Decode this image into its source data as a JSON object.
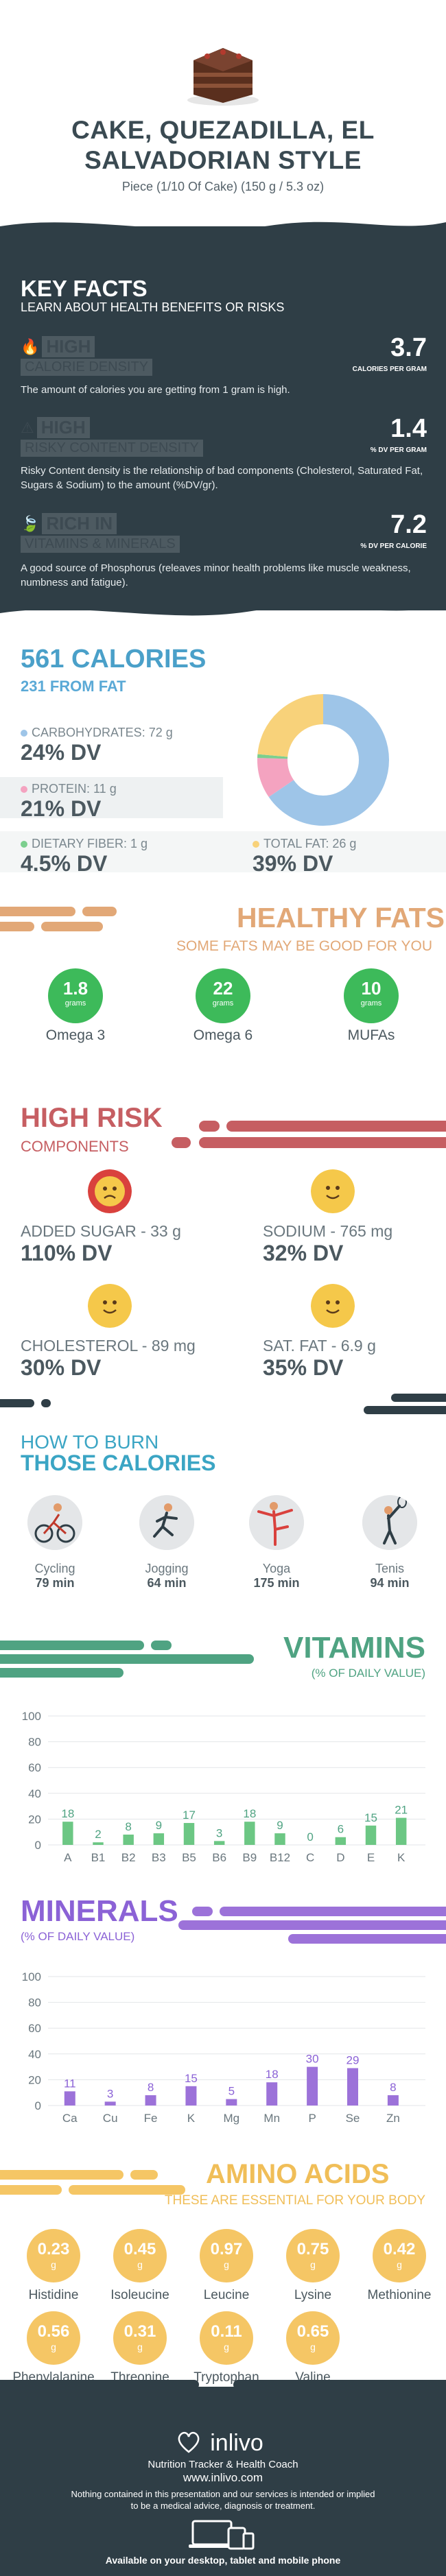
{
  "header": {
    "title_line1": "CAKE, QUEZADILLA, EL",
    "title_line2": "SALVADORIAN STYLE",
    "serving": "Piece (1/10 Of Cake) (150 g / 5.3 oz)"
  },
  "key_facts": {
    "title": "KEY FACTS",
    "subtitle": "LEARN ABOUT HEALTH BENEFITS OR RISKS",
    "items": [
      {
        "level": "HIGH",
        "label": "CALORIE DENSITY",
        "value": "3.7",
        "unit": "CALORIES PER GRAM",
        "desc": "The amount of calories you are getting from 1 gram is high."
      },
      {
        "level": "HIGH",
        "label": "RISKY CONTENT DENSITY",
        "value": "1.4",
        "unit": "% DV PER GRAM",
        "desc": "Risky Content density is the relationship of bad components (Cholesterol, Saturated Fat, Sugars & Sodium) to the amount (%DV/gr)."
      },
      {
        "level": "RICH  IN",
        "label": "VITAMINS & MINERALS",
        "value": "7.2",
        "unit": "% DV PER CALORIE",
        "desc": "A good source of Phosphorus (releaves minor health problems like muscle weakness, numbness and fatigue)."
      }
    ]
  },
  "calories": {
    "title": "561 CALORIES",
    "from_fat": "231 FROM FAT",
    "nutrients": [
      {
        "label": "CARBOHYDRATES: 72 g",
        "dv": "24% DV",
        "color": "#9ec5e8"
      },
      {
        "label": "PROTEIN: 11 g",
        "dv": "21% DV",
        "color": "#f4a3c0"
      },
      {
        "label": "DIETARY FIBER: 1 g",
        "dv": "4.5% DV",
        "color": "#7ccf8e"
      },
      {
        "label": "TOTAL FAT: 26 g",
        "dv": "39% DV",
        "color": "#f8d27a"
      }
    ],
    "donut": [
      {
        "name": "carbohydrates",
        "value": 72,
        "color": "#9ec5e8"
      },
      {
        "name": "protein",
        "value": 11,
        "color": "#f4a3c0"
      },
      {
        "name": "fiber",
        "value": 1,
        "color": "#7ccf8e"
      },
      {
        "name": "fat",
        "value": 26,
        "color": "#f8d27a"
      }
    ]
  },
  "healthy_fats": {
    "title": "HEALTHY FATS",
    "subtitle": "SOME FATS MAY BE GOOD FOR YOU",
    "unit": "grams",
    "items": [
      {
        "value": "1.8",
        "name": "Omega 3"
      },
      {
        "value": "22",
        "name": "Omega 6"
      },
      {
        "value": "10",
        "name": "MUFAs"
      }
    ]
  },
  "high_risk": {
    "title": "HIGH RISK",
    "subtitle": "COMPONENTS",
    "items": [
      {
        "label": "ADDED SUGAR - 33 g",
        "dv": "110% DV",
        "face": "sad"
      },
      {
        "label": "SODIUM - 765 mg",
        "dv": "32% DV",
        "face": "happy"
      },
      {
        "label": "CHOLESTEROL - 89 mg",
        "dv": "30% DV",
        "face": "happy"
      },
      {
        "label": "SAT. FAT - 6.9 g",
        "dv": "35% DV",
        "face": "happy"
      }
    ]
  },
  "burn": {
    "title_line1": "HOW TO BURN",
    "title_line2": "THOSE CALORIES",
    "activities": [
      {
        "name": "Cycling",
        "minutes": "79 min",
        "icon": "cycling-icon"
      },
      {
        "name": "Jogging",
        "minutes": "64 min",
        "icon": "jogging-icon"
      },
      {
        "name": "Yoga",
        "minutes": "175 min",
        "icon": "yoga-icon"
      },
      {
        "name": "Tenis",
        "minutes": "94 min",
        "icon": "tennis-icon"
      }
    ]
  },
  "vitamins": {
    "title": "VITAMINS",
    "subtitle": "(% OF DAILY VALUE)",
    "color": "#6cc784"
  },
  "minerals": {
    "title": "MINERALS",
    "subtitle": "(% OF DAILY VALUE)",
    "color": "#9c72d9"
  },
  "chart_data": [
    {
      "type": "bar",
      "title": "VITAMINS",
      "subtitle": "(% OF DAILY VALUE)",
      "categories": [
        "A",
        "B1",
        "B2",
        "B3",
        "B5",
        "B6",
        "B9",
        "B12",
        "C",
        "D",
        "E",
        "K"
      ],
      "values": [
        18,
        2,
        8,
        9,
        17,
        3,
        18,
        9,
        0,
        6,
        15,
        21
      ],
      "yticks": [
        0,
        20,
        40,
        60,
        80,
        100
      ],
      "ylim": [
        0,
        100
      ],
      "grid": true
    },
    {
      "type": "bar",
      "title": "MINERALS",
      "subtitle": "(% OF DAILY VALUE)",
      "categories": [
        "Ca",
        "Cu",
        "Fe",
        "K",
        "Mg",
        "Mn",
        "P",
        "Se",
        "Zn"
      ],
      "values": [
        11,
        3,
        8,
        15,
        5,
        18,
        30,
        29,
        8
      ],
      "yticks": [
        0,
        20,
        40,
        60,
        80,
        100
      ],
      "ylim": [
        0,
        100
      ],
      "grid": true
    }
  ],
  "amino": {
    "title": "AMINO ACIDS",
    "subtitle": "THESE ARE ESSENTIAL FOR YOUR BODY",
    "unit": "g",
    "items": [
      {
        "value": "0.23",
        "name": "Histidine"
      },
      {
        "value": "0.45",
        "name": "Isoleucine"
      },
      {
        "value": "0.97",
        "name": "Leucine"
      },
      {
        "value": "0.75",
        "name": "Lysine"
      },
      {
        "value": "0.42",
        "name": "Methionine"
      },
      {
        "value": "0.56",
        "name": "Phenylalanine"
      },
      {
        "value": "0.31",
        "name": "Threonine"
      },
      {
        "value": "0.11",
        "name": "Tryptophan"
      },
      {
        "value": "0.65",
        "name": "Valine"
      }
    ]
  },
  "footer": {
    "brand": "inlivo",
    "tagline": "Nutrition Tracker & Health Coach",
    "url": "www.inlivo.com",
    "disclaimer": "Nothing contained in this presentation and our services is intended or implied to be a medical advice, diagnosis or treatment.",
    "available": "Available on your desktop, tablet and mobile phone"
  }
}
